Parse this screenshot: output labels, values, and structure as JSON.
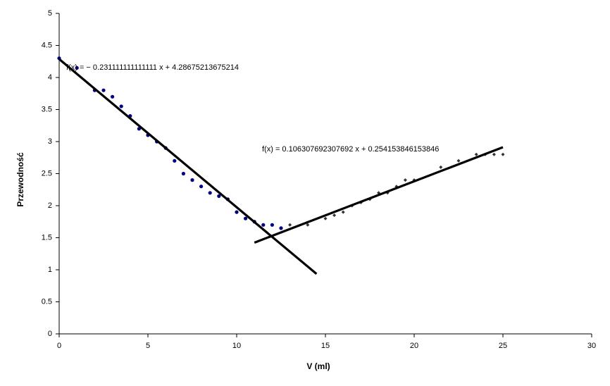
{
  "chart_data": {
    "type": "scatter",
    "x_label": "V (ml)",
    "y_label": "Przewodność",
    "xlim": [
      0,
      30
    ],
    "xticks": [
      0,
      5,
      10,
      15,
      20,
      25,
      30
    ],
    "ylim": [
      0,
      5
    ],
    "yticks": [
      0,
      0.5,
      1,
      1.5,
      2,
      2.5,
      3,
      3.5,
      4,
      4.5,
      5
    ],
    "series": [
      {
        "color": "#000080",
        "marker": "circle",
        "x": [
          0,
          1,
          2,
          2.5,
          3,
          3.5,
          4,
          4.5,
          5,
          5.5,
          6,
          6.5,
          7,
          7.5,
          8,
          8.5,
          9,
          9.5,
          10,
          10.5,
          11,
          11.5,
          12,
          12.5
        ],
        "values": [
          4.3,
          4.15,
          3.8,
          3.8,
          3.7,
          3.55,
          3.4,
          3.2,
          3.1,
          3.0,
          2.9,
          2.7,
          2.5,
          2.4,
          2.3,
          2.2,
          2.15,
          2.1,
          1.9,
          1.8,
          1.75,
          1.7,
          1.7,
          1.65
        ],
        "trendline": {
          "label": "f(x) = − 0.231111111111111 x + 4.28675213675214",
          "slope": -0.231111111111111,
          "intercept": 4.28675213675214,
          "forecast_forward": 2
        }
      },
      {
        "color": "#333333",
        "marker": "diamond",
        "x": [
          13,
          14,
          15,
          15.5,
          16,
          16.5,
          17,
          17.5,
          18,
          18.5,
          19,
          19.5,
          20,
          21.5,
          22.5,
          23.5,
          24,
          24.5,
          25
        ],
        "values": [
          1.7,
          1.7,
          1.8,
          1.85,
          1.9,
          2.0,
          2.05,
          2.1,
          2.2,
          2.2,
          2.3,
          2.4,
          2.4,
          2.6,
          2.7,
          2.8,
          2.8,
          2.8,
          2.8
        ],
        "trendline": {
          "label": "f(x) = 0.106307692307692 x + 0.254153846153846",
          "slope": 0.106307692307692,
          "intercept": 0.254153846153846,
          "forecast_backward": 2
        }
      }
    ]
  }
}
